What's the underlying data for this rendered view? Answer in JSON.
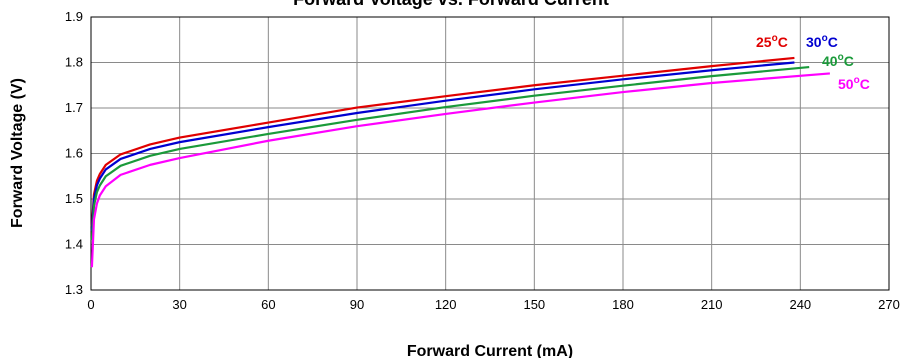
{
  "chart_data": {
    "type": "line",
    "title": "Forward Voltage vs. Forward Current",
    "xlabel": "Forward Current (mA)",
    "ylabel": "Forward Voltage (V)",
    "xlim": [
      0,
      270
    ],
    "ylim": [
      1.3,
      1.9
    ],
    "x_ticks": [
      0,
      30,
      60,
      90,
      120,
      150,
      180,
      210,
      240,
      270
    ],
    "y_ticks": [
      1.3,
      1.4,
      1.5,
      1.6,
      1.7,
      1.8,
      1.9
    ],
    "x_tick_labels": [
      "0",
      "30",
      "60",
      "90",
      "120",
      "150",
      "180",
      "210",
      "240",
      "270"
    ],
    "y_tick_labels": [
      "1.3",
      "1.4",
      "1.5",
      "1.6",
      "1.7",
      "1.8",
      "1.9"
    ],
    "grid": true,
    "legend": "inline labels near line ends",
    "series": [
      {
        "name": "25°C",
        "label_main": "25",
        "label_sup": "o",
        "label_unit": "C",
        "color": "#e00000",
        "x": [
          0.3,
          1,
          2,
          3,
          5,
          10,
          20,
          30,
          60,
          90,
          120,
          150,
          180,
          210,
          238
        ],
        "y": [
          1.44,
          1.51,
          1.54,
          1.555,
          1.575,
          1.598,
          1.62,
          1.635,
          1.668,
          1.701,
          1.726,
          1.75,
          1.771,
          1.792,
          1.81
        ]
      },
      {
        "name": "30°C",
        "label_main": "30",
        "label_sup": "o",
        "label_unit": "C",
        "color": "#0000d0",
        "x": [
          0.3,
          1,
          2,
          3,
          5,
          10,
          20,
          30,
          60,
          90,
          120,
          150,
          180,
          210,
          238
        ],
        "y": [
          1.43,
          1.5,
          1.53,
          1.545,
          1.565,
          1.588,
          1.61,
          1.625,
          1.658,
          1.689,
          1.716,
          1.741,
          1.763,
          1.783,
          1.8
        ]
      },
      {
        "name": "40°C",
        "label_main": "40",
        "label_sup": "o",
        "label_unit": "C",
        "color": "#1a9a3a",
        "x": [
          0.3,
          1,
          2,
          3,
          5,
          10,
          20,
          30,
          60,
          90,
          120,
          150,
          180,
          210,
          243
        ],
        "y": [
          1.41,
          1.485,
          1.515,
          1.53,
          1.55,
          1.573,
          1.595,
          1.61,
          1.643,
          1.674,
          1.702,
          1.727,
          1.749,
          1.77,
          1.79
        ]
      },
      {
        "name": "50°C",
        "label_main": "50",
        "label_sup": "o",
        "label_unit": "C",
        "color": "#ff00ff",
        "x": [
          0.3,
          1,
          2,
          3,
          5,
          10,
          20,
          30,
          60,
          90,
          120,
          150,
          180,
          210,
          250
        ],
        "y": [
          1.35,
          1.455,
          1.49,
          1.508,
          1.528,
          1.553,
          1.575,
          1.59,
          1.628,
          1.66,
          1.687,
          1.712,
          1.735,
          1.755,
          1.776
        ]
      }
    ]
  }
}
